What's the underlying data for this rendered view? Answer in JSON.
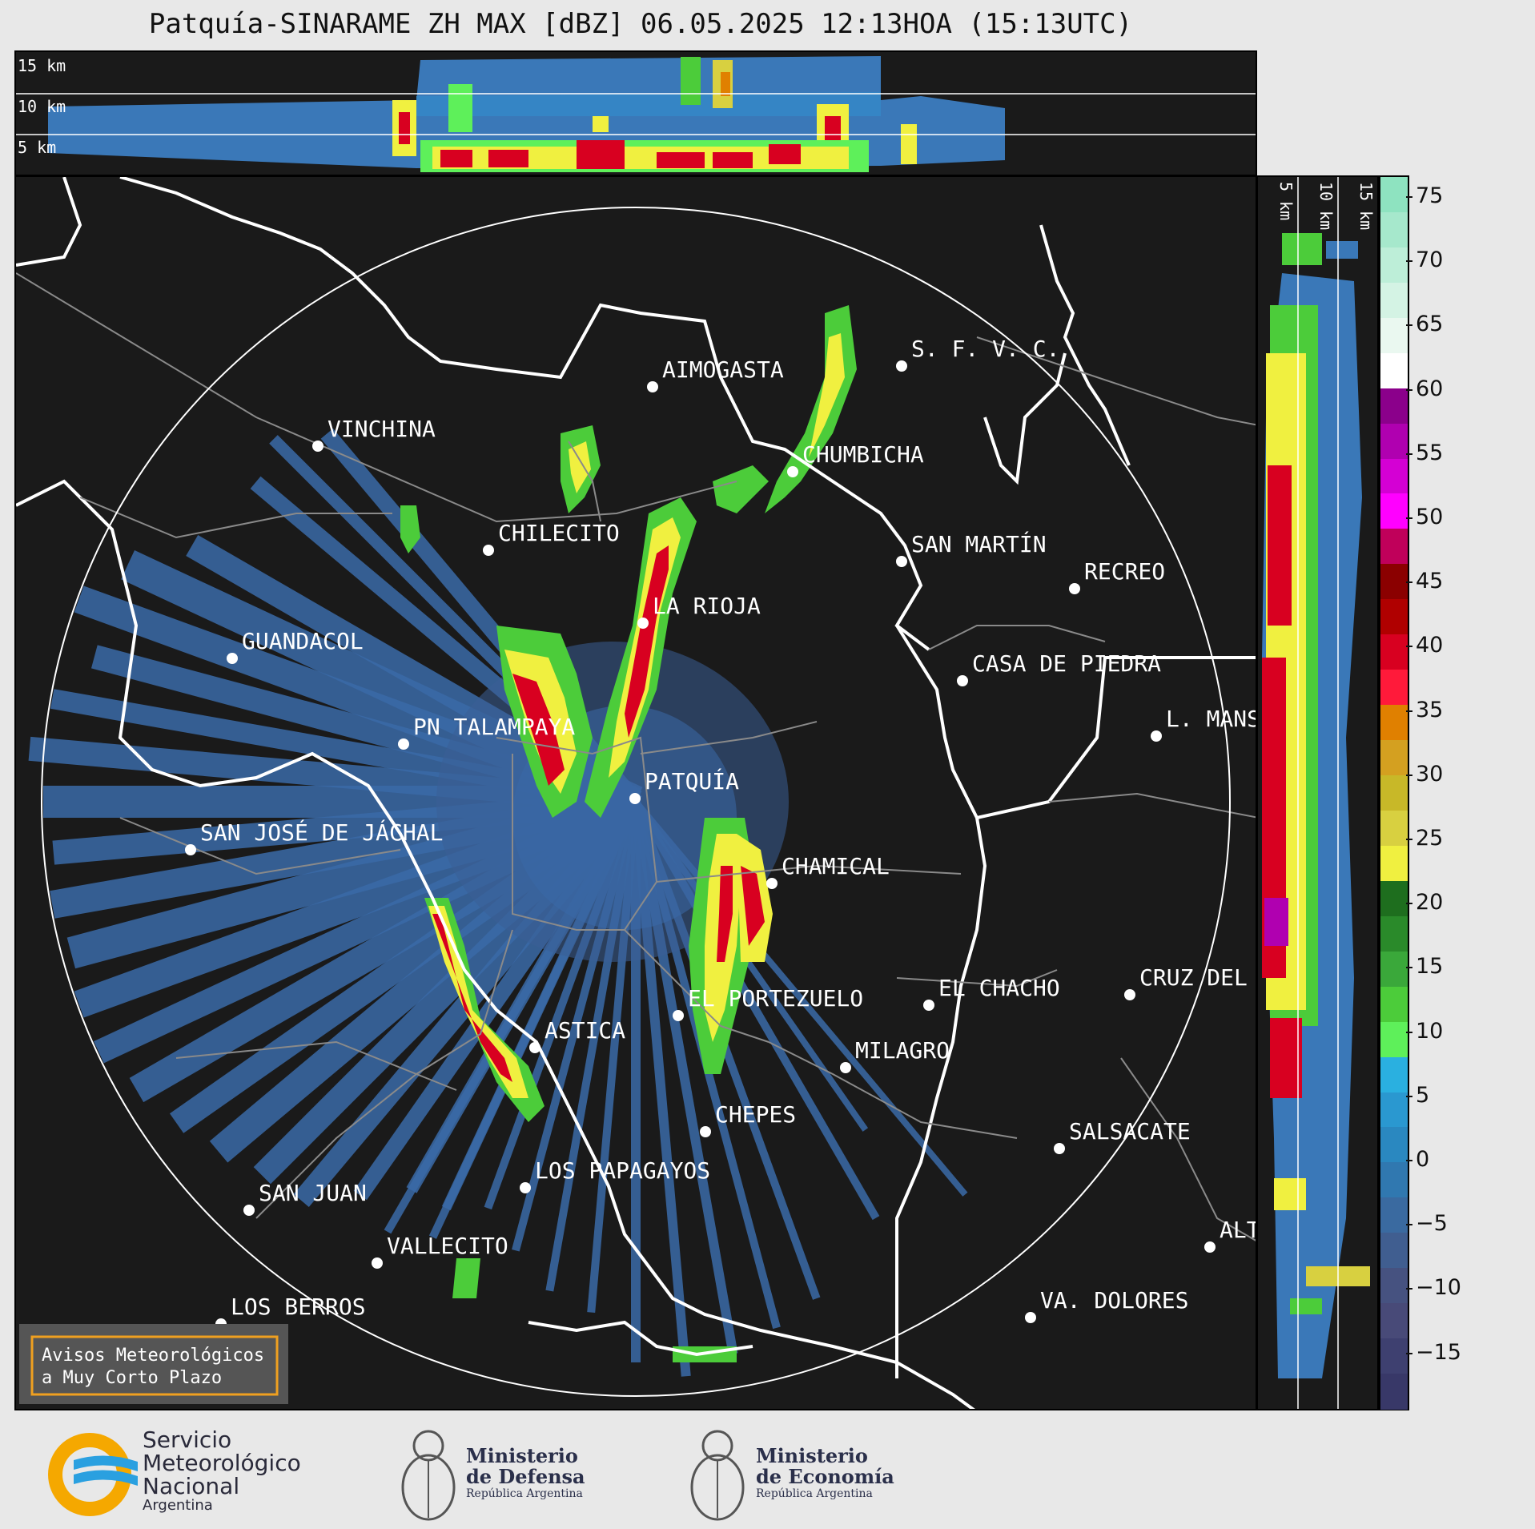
{
  "title": "Patquía-SINARAME ZH MAX [dBZ] 06.05.2025 12:13HOA (15:13UTC)",
  "top_panel": {
    "heights": [
      "15 km",
      "10 km",
      "5 km"
    ]
  },
  "side_panel": {
    "heights": [
      "5 km",
      "10 km",
      "15 km"
    ]
  },
  "colorbar": {
    "ticks": [
      "75",
      "70",
      "65",
      "60",
      "55",
      "50",
      "45",
      "40",
      "35",
      "30",
      "25",
      "20",
      "15",
      "10",
      "5",
      "0",
      "−5",
      "−10",
      "−15"
    ],
    "colors": [
      "#8ee3c0",
      "#a6e8cc",
      "#bdeed8",
      "#d4f3e4",
      "#eaf8f0",
      "#ffffff",
      "#8b008b",
      "#b000b0",
      "#d400d4",
      "#ff00ff",
      "#c0005a",
      "#8b0000",
      "#b00000",
      "#d80020",
      "#ff1a3a",
      "#e08000",
      "#d4a020",
      "#c8b828",
      "#d8d040",
      "#f0f040",
      "#1e6e1e",
      "#2a8a2a",
      "#3aa83a",
      "#4ccc3a",
      "#5ef05a",
      "#2ab0e0",
      "#2a98d0",
      "#2a88c0",
      "#3078b0",
      "#3a6aa0",
      "#405e90",
      "#465280",
      "#484a78",
      "#3e4070",
      "#383868"
    ]
  },
  "cities": [
    {
      "name": "AIMOGASTA"
    },
    {
      "name": "S. F. V. C."
    },
    {
      "name": "VINCHINA"
    },
    {
      "name": "CHUMBICHA"
    },
    {
      "name": "CHILECITO"
    },
    {
      "name": "SAN MARTÍN"
    },
    {
      "name": "RECREO"
    },
    {
      "name": "LA RIOJA"
    },
    {
      "name": "GUANDACOL"
    },
    {
      "name": "CASA DE PIEDRA"
    },
    {
      "name": "L. MANS"
    },
    {
      "name": "PN TALAMPAYA"
    },
    {
      "name": "PATQUÍA"
    },
    {
      "name": "SAN JOSÉ DE JÁCHAL"
    },
    {
      "name": "CHAMICAL"
    },
    {
      "name": "EL CHACHO"
    },
    {
      "name": "CRUZ DEL"
    },
    {
      "name": "EL PORTEZUELO"
    },
    {
      "name": "ASTICA"
    },
    {
      "name": "MILAGRO"
    },
    {
      "name": "CHEPES"
    },
    {
      "name": "SALSACATE"
    },
    {
      "name": "LOS PAPAGAYOS"
    },
    {
      "name": "SAN JUAN"
    },
    {
      "name": "ALT"
    },
    {
      "name": "VALLECITO"
    },
    {
      "name": "LOS BERROS"
    },
    {
      "name": "VA. DOLORES"
    }
  ],
  "notice": {
    "line1": "Avisos Meteorológicos",
    "line2": "a Muy Corto Plazo"
  },
  "logos": {
    "smn": {
      "line1": "Servicio",
      "line2": "Meteorológico",
      "line3": "Nacional",
      "line4": "Argentina"
    },
    "defensa": {
      "line1": "Ministerio",
      "line2": "de Defensa",
      "line3": "República Argentina"
    },
    "economia": {
      "line1": "Ministerio",
      "line2": "de Economía",
      "line3": "República Argentina"
    }
  }
}
